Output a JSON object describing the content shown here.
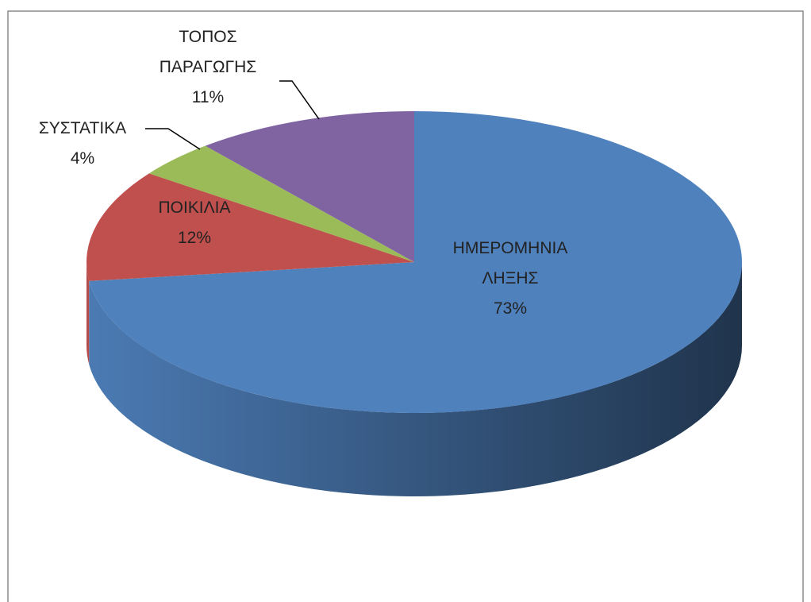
{
  "chart_data": {
    "type": "pie3d",
    "categories": [
      "ΗΜΕΡΟΜΗΝΙΑ ΛΗΞΗΣ",
      "ΠΟΙΚΙΛΙΑ",
      "ΣΥΣΤΑΤΙΚΑ",
      "ΤΟΠΟΣ ΠΑΡΑΓΩΓΗΣ"
    ],
    "values": [
      73,
      12,
      4,
      11
    ],
    "value_labels": [
      "73%",
      "12%",
      "4%",
      "11%"
    ],
    "colors": [
      "#4f81bd",
      "#c0504d",
      "#9bbb59",
      "#8064a2"
    ]
  }
}
